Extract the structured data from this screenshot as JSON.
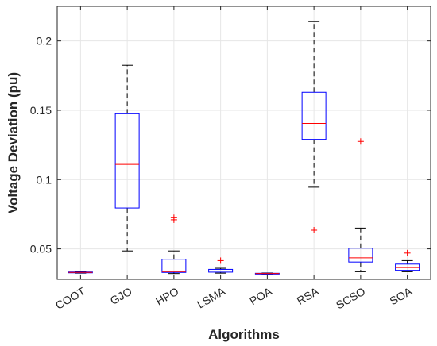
{
  "chart_data": {
    "type": "box",
    "title": "",
    "xlabel": "Algorithms",
    "ylabel": "Voltage Deviation (pu)",
    "ylim": [
      0.028,
      0.225
    ],
    "yticks": [
      0.05,
      0.1,
      0.15,
      0.2
    ],
    "ytick_labels": [
      "0.05",
      "0.1",
      "0.15",
      "0.2"
    ],
    "grid": true,
    "colors": {
      "box": "#0000ff",
      "median": "#ff0000",
      "whisker": "#000000",
      "outlier": "#ff0000",
      "grid": "#e6e6e6",
      "axes": "#262626"
    },
    "categories": [
      "COOT",
      "GJO",
      "HPO",
      "LSMA",
      "POA",
      "RSA",
      "SCSO",
      "SOA"
    ],
    "boxes": [
      {
        "label": "COOT",
        "whisker_low": 0.0325,
        "q1": 0.0328,
        "median": 0.033,
        "q3": 0.0333,
        "whisker_high": 0.0336,
        "outliers": []
      },
      {
        "label": "GJO",
        "whisker_low": 0.0485,
        "q1": 0.0795,
        "median": 0.111,
        "q3": 0.1475,
        "whisker_high": 0.1825,
        "outliers": []
      },
      {
        "label": "HPO",
        "whisker_low": 0.0322,
        "q1": 0.033,
        "median": 0.0336,
        "q3": 0.0425,
        "whisker_high": 0.0485,
        "outliers": [
          0.071,
          0.0725
        ]
      },
      {
        "label": "LSMA",
        "whisker_low": 0.0325,
        "q1": 0.0332,
        "median": 0.034,
        "q3": 0.0352,
        "whisker_high": 0.036,
        "outliers": [
          0.0415
        ]
      },
      {
        "label": "POA",
        "whisker_low": 0.0318,
        "q1": 0.032,
        "median": 0.0322,
        "q3": 0.0324,
        "whisker_high": 0.0326,
        "outliers": []
      },
      {
        "label": "RSA",
        "whisker_low": 0.0945,
        "q1": 0.129,
        "median": 0.1405,
        "q3": 0.163,
        "whisker_high": 0.214,
        "outliers": [
          0.0635
        ]
      },
      {
        "label": "SCSO",
        "whisker_low": 0.0335,
        "q1": 0.0405,
        "median": 0.0435,
        "q3": 0.0505,
        "whisker_high": 0.065,
        "outliers": [
          0.1275
        ]
      },
      {
        "label": "SOA",
        "whisker_low": 0.0335,
        "q1": 0.0345,
        "median": 0.0365,
        "q3": 0.039,
        "whisker_high": 0.0415,
        "outliers": [
          0.047
        ]
      }
    ]
  }
}
